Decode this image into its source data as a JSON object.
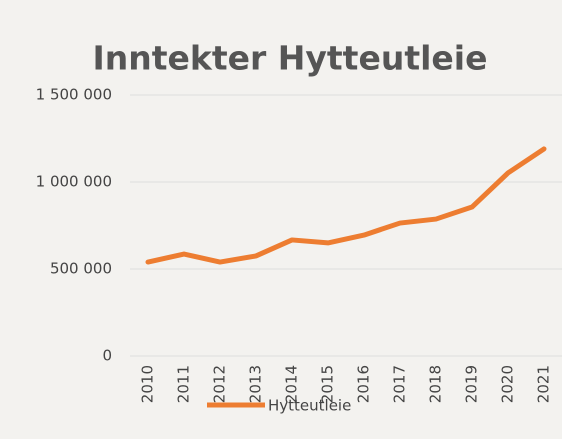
{
  "chart_data": {
    "type": "line",
    "title": "Inntekter Hytteutleie",
    "categories": [
      "2010",
      "2011",
      "2012",
      "2013",
      "2014",
      "2015",
      "2016",
      "2017",
      "2018",
      "2019",
      "2020",
      "2021"
    ],
    "series": [
      {
        "name": "Hytteutleie",
        "color": "#ed7d31",
        "values": [
          540000,
          586000,
          540000,
          575000,
          667000,
          650000,
          695000,
          764000,
          787000,
          856000,
          1052000,
          1190000
        ]
      }
    ],
    "ylim": [
      0,
      1500000
    ],
    "yticks": [
      0,
      {
        "value": 500000,
        "label": "500 000"
      },
      {
        "value": 1000000,
        "label": "1 000 000"
      },
      {
        "value": 1500000,
        "label": "1 500 000"
      }
    ],
    "grid": true,
    "legend": "bottom"
  }
}
